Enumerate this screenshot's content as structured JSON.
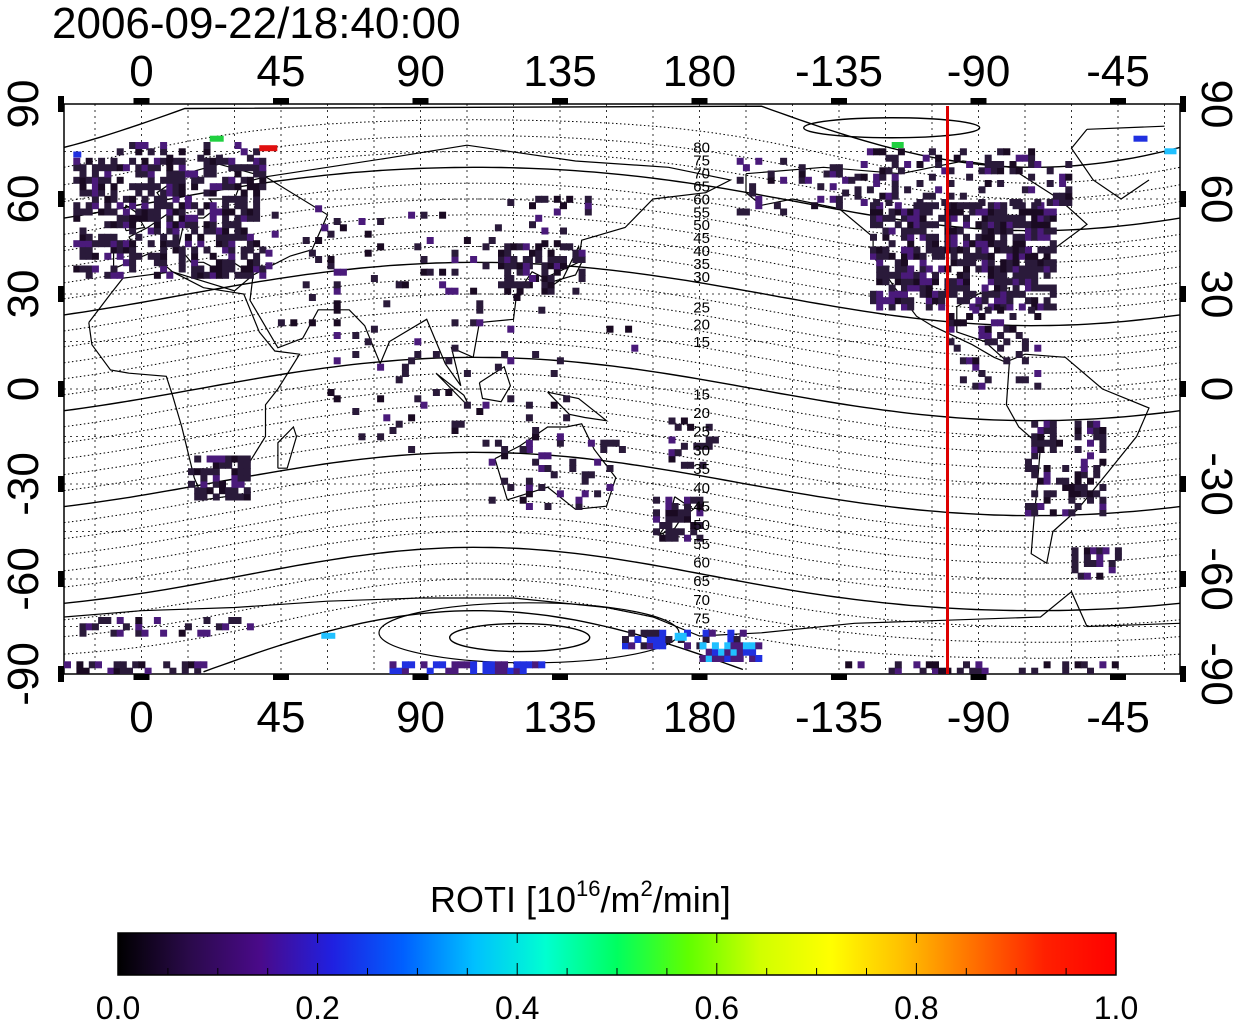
{
  "title": "2006-09-22/18:40:00",
  "map": {
    "lon_ticks": [
      "0",
      "45",
      "90",
      "135",
      "180",
      "-135",
      "-90",
      "-45"
    ],
    "lat_ticks_left": [
      "90",
      "60",
      "30",
      "0",
      "-30",
      "-60",
      "-90"
    ],
    "lat_ticks_right": [
      "90",
      "60",
      "30",
      "0",
      "-30",
      "-60",
      "-90"
    ],
    "lon_range": [
      -25,
      335
    ],
    "lat_range": [
      -90,
      90
    ],
    "marker_lon": -100,
    "marker_color": "#dd0000",
    "contour_labels_north": [
      "80",
      "75",
      "70",
      "65",
      "60",
      "55",
      "50",
      "45",
      "40",
      "35",
      "30",
      "25",
      "20",
      "15"
    ],
    "contour_labels_south": [
      "15",
      "20",
      "25",
      "30",
      "35",
      "40",
      "45",
      "50",
      "55",
      "60",
      "65",
      "70",
      "75"
    ]
  },
  "colorbar": {
    "label_main": "ROTI  [10",
    "label_sup1": "16",
    "label_mid": "/m",
    "label_sup2": "2",
    "label_end": "/min]",
    "ticks": [
      "0.0",
      "0.2",
      "0.4",
      "0.6",
      "0.8",
      "1.0"
    ],
    "min": 0.0,
    "max": 1.0,
    "colors": [
      "#000000",
      "#2a0a4a",
      "#4a0a8a",
      "#2020e0",
      "#0060ff",
      "#00c0ff",
      "#00ffd0",
      "#00ff60",
      "#60ff00",
      "#d0ff00",
      "#ffff00",
      "#ffc000",
      "#ff7000",
      "#ff2000",
      "#ff0000"
    ]
  },
  "data_colors": {
    "dark": "#2a1a3a",
    "purple": "#4a1a7a",
    "blue": "#2030e0",
    "cyan": "#20c0ff",
    "green": "#20d040",
    "red": "#e01010"
  }
}
